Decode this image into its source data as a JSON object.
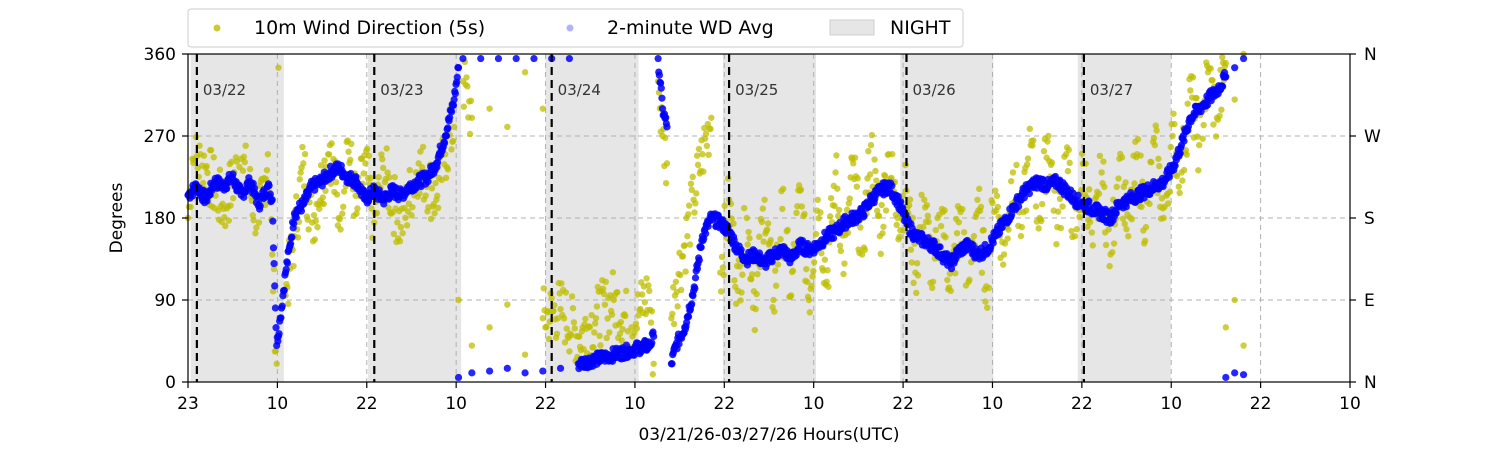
{
  "chart_data": {
    "type": "scatter",
    "xlabel": "03/21/26-03/27/26  Hours(UTC)",
    "ylabel": "Degrees",
    "x_tick_labels": [
      "23",
      "10",
      "22",
      "10",
      "22",
      "10",
      "22",
      "10",
      "22",
      "10",
      "22",
      "10",
      "22",
      "10"
    ],
    "y_ticks": [
      0,
      90,
      180,
      270,
      360
    ],
    "y_tick_labels": [
      "0",
      "90",
      "180",
      "270",
      "360"
    ],
    "y_right_tick_labels": [
      "N",
      "E",
      "S",
      "W",
      "N"
    ],
    "ylim": [
      0,
      360
    ],
    "xlim_hours": [
      0,
      131
    ],
    "grid": true,
    "legend": {
      "position": "top",
      "entries": [
        "10m Wind Direction (5s)",
        "2-minute WD Avg",
        "NIGHT"
      ]
    },
    "colors": {
      "wd5s": "#bdbd00",
      "avg": "#0000ff",
      "night": "#e6e6e6",
      "midnight_line": "#000000"
    },
    "midnights": [
      {
        "hour": 1,
        "label": "03/22"
      },
      {
        "hour": 21,
        "label": "03/23"
      },
      {
        "hour": 41,
        "label": "03/24"
      },
      {
        "hour": 61,
        "label": "03/25"
      },
      {
        "hour": 81,
        "label": "03/26"
      },
      {
        "hour": 101,
        "label": "03/27"
      }
    ],
    "night_periods": [
      [
        0.3,
        10.8
      ],
      [
        20.3,
        30.8
      ],
      [
        40.3,
        50.8
      ],
      [
        60.3,
        70.8
      ],
      [
        80.3,
        90.8
      ],
      [
        100.3,
        110.8
      ]
    ],
    "series": [
      {
        "name": "2-minute WD Avg",
        "points": [
          [
            0,
            205
          ],
          [
            1,
            215
          ],
          [
            2,
            200
          ],
          [
            3,
            220
          ],
          [
            4,
            215
          ],
          [
            5,
            225
          ],
          [
            6,
            205
          ],
          [
            7,
            220
          ],
          [
            8,
            195
          ],
          [
            9,
            215
          ],
          [
            9.5,
            200
          ],
          [
            9.7,
            130
          ],
          [
            10,
            40
          ],
          [
            10.4,
            70
          ],
          [
            11,
            120
          ],
          [
            11.5,
            150
          ],
          [
            12,
            185
          ],
          [
            13,
            195
          ],
          [
            14,
            215
          ],
          [
            15,
            220
          ],
          [
            16,
            230
          ],
          [
            17,
            235
          ],
          [
            18,
            225
          ],
          [
            19,
            220
          ],
          [
            20,
            200
          ],
          [
            21,
            210
          ],
          [
            22,
            200
          ],
          [
            23,
            210
          ],
          [
            24,
            205
          ],
          [
            25,
            215
          ],
          [
            26,
            220
          ],
          [
            27,
            225
          ],
          [
            28,
            240
          ],
          [
            29,
            270
          ],
          [
            30,
            310
          ],
          [
            30.5,
            345
          ],
          [
            31,
            355
          ],
          [
            33,
            355
          ],
          [
            35,
            355
          ],
          [
            37,
            355
          ],
          [
            39,
            355
          ],
          [
            41,
            355
          ],
          [
            43,
            355
          ],
          [
            30.5,
            5
          ],
          [
            32,
            10
          ],
          [
            34,
            12
          ],
          [
            36,
            15
          ],
          [
            38,
            10
          ],
          [
            40,
            12
          ],
          [
            42,
            15
          ],
          [
            44,
            20
          ],
          [
            46,
            25
          ],
          [
            48,
            30
          ],
          [
            50,
            35
          ],
          [
            51,
            38
          ],
          [
            52,
            40
          ],
          [
            52.5,
            50
          ],
          [
            53,
            355
          ],
          [
            53.5,
            300
          ],
          [
            54,
            280
          ],
          [
            54.5,
            20
          ],
          [
            55,
            40
          ],
          [
            56,
            60
          ],
          [
            57,
            100
          ],
          [
            58,
            160
          ],
          [
            59,
            180
          ],
          [
            60,
            175
          ],
          [
            61,
            165
          ],
          [
            62,
            145
          ],
          [
            63,
            135
          ],
          [
            64,
            140
          ],
          [
            65,
            130
          ],
          [
            66,
            140
          ],
          [
            67,
            145
          ],
          [
            68,
            135
          ],
          [
            69,
            150
          ],
          [
            70,
            145
          ],
          [
            71,
            150
          ],
          [
            72,
            160
          ],
          [
            73,
            165
          ],
          [
            74,
            175
          ],
          [
            75,
            180
          ],
          [
            76,
            185
          ],
          [
            77,
            200
          ],
          [
            78,
            210
          ],
          [
            79,
            215
          ],
          [
            80,
            200
          ],
          [
            81,
            175
          ],
          [
            82,
            160
          ],
          [
            83,
            155
          ],
          [
            84,
            150
          ],
          [
            85,
            140
          ],
          [
            86,
            130
          ],
          [
            87,
            145
          ],
          [
            88,
            150
          ],
          [
            89,
            140
          ],
          [
            90,
            145
          ],
          [
            91,
            160
          ],
          [
            92,
            175
          ],
          [
            93,
            190
          ],
          [
            94,
            205
          ],
          [
            95,
            215
          ],
          [
            96,
            220
          ],
          [
            97,
            215
          ],
          [
            98,
            220
          ],
          [
            99,
            210
          ],
          [
            100,
            200
          ],
          [
            101,
            195
          ],
          [
            102,
            190
          ],
          [
            103,
            185
          ],
          [
            104,
            180
          ],
          [
            105,
            195
          ],
          [
            106,
            200
          ],
          [
            107,
            205
          ],
          [
            108,
            210
          ],
          [
            109,
            215
          ],
          [
            110,
            220
          ],
          [
            111,
            235
          ],
          [
            112,
            260
          ],
          [
            113,
            290
          ],
          [
            114,
            300
          ],
          [
            115,
            310
          ],
          [
            116,
            320
          ],
          [
            117,
            335
          ],
          [
            118,
            345
          ],
          [
            119,
            355
          ],
          [
            117,
            5
          ],
          [
            118,
            10
          ],
          [
            119,
            8
          ]
        ]
      },
      {
        "name": "10m Wind Direction (5s)",
        "points": [
          [
            0,
            180
          ],
          [
            0.5,
            245
          ],
          [
            2,
            235
          ],
          [
            4,
            190
          ],
          [
            6,
            245
          ],
          [
            8,
            175
          ],
          [
            9,
            250
          ],
          [
            9.5,
            140
          ],
          [
            10,
            20
          ],
          [
            10.2,
            345
          ],
          [
            11,
            95
          ],
          [
            12,
            160
          ],
          [
            13,
            240
          ],
          [
            14,
            175
          ],
          [
            16,
            260
          ],
          [
            17,
            180
          ],
          [
            18,
            265
          ],
          [
            19,
            185
          ],
          [
            20,
            240
          ],
          [
            21,
            175
          ],
          [
            22,
            235
          ],
          [
            24,
            170
          ],
          [
            26,
            240
          ],
          [
            28,
            200
          ],
          [
            29,
            250
          ],
          [
            30,
            280
          ],
          [
            31,
            330
          ],
          [
            32,
            290
          ],
          [
            34,
            300
          ],
          [
            36,
            280
          ],
          [
            38,
            340
          ],
          [
            40,
            300
          ],
          [
            30.5,
            90
          ],
          [
            32,
            40
          ],
          [
            34,
            60
          ],
          [
            36,
            85
          ],
          [
            38,
            30
          ],
          [
            40,
            70
          ],
          [
            42,
            80
          ],
          [
            44,
            50
          ],
          [
            46,
            70
          ],
          [
            48,
            90
          ],
          [
            50,
            60
          ],
          [
            51,
            80
          ],
          [
            52,
            100
          ],
          [
            52.5,
            20
          ],
          [
            53,
            330
          ],
          [
            53.5,
            270
          ],
          [
            54,
            240
          ],
          [
            54.5,
            70
          ],
          [
            55,
            110
          ],
          [
            56,
            150
          ],
          [
            57,
            200
          ],
          [
            58,
            250
          ],
          [
            59,
            290
          ],
          [
            60,
            120
          ],
          [
            61,
            200
          ],
          [
            62,
            100
          ],
          [
            63,
            180
          ],
          [
            64,
            80
          ],
          [
            65,
            200
          ],
          [
            66,
            90
          ],
          [
            67,
            190
          ],
          [
            68,
            95
          ],
          [
            69,
            210
          ],
          [
            70,
            90
          ],
          [
            71,
            200
          ],
          [
            72,
            110
          ],
          [
            73,
            230
          ],
          [
            74,
            130
          ],
          [
            75,
            240
          ],
          [
            76,
            140
          ],
          [
            77,
            260
          ],
          [
            78,
            160
          ],
          [
            79,
            250
          ],
          [
            80,
            180
          ],
          [
            81,
            210
          ],
          [
            82,
            120
          ],
          [
            83,
            200
          ],
          [
            84,
            110
          ],
          [
            85,
            190
          ],
          [
            86,
            100
          ],
          [
            87,
            190
          ],
          [
            88,
            110
          ],
          [
            89,
            200
          ],
          [
            90,
            105
          ],
          [
            91,
            210
          ],
          [
            92,
            140
          ],
          [
            93,
            230
          ],
          [
            94,
            170
          ],
          [
            95,
            260
          ],
          [
            96,
            180
          ],
          [
            97,
            270
          ],
          [
            98,
            170
          ],
          [
            99,
            250
          ],
          [
            100,
            160
          ],
          [
            101,
            240
          ],
          [
            102,
            150
          ],
          [
            103,
            230
          ],
          [
            104,
            140
          ],
          [
            105,
            245
          ],
          [
            106,
            160
          ],
          [
            107,
            250
          ],
          [
            108,
            170
          ],
          [
            109,
            260
          ],
          [
            110,
            180
          ],
          [
            111,
            270
          ],
          [
            112,
            230
          ],
          [
            113,
            320
          ],
          [
            114,
            260
          ],
          [
            115,
            340
          ],
          [
            116,
            290
          ],
          [
            117,
            350
          ],
          [
            118,
            310
          ],
          [
            119,
            360
          ],
          [
            117,
            60
          ],
          [
            118,
            90
          ],
          [
            119,
            40
          ]
        ]
      }
    ]
  }
}
